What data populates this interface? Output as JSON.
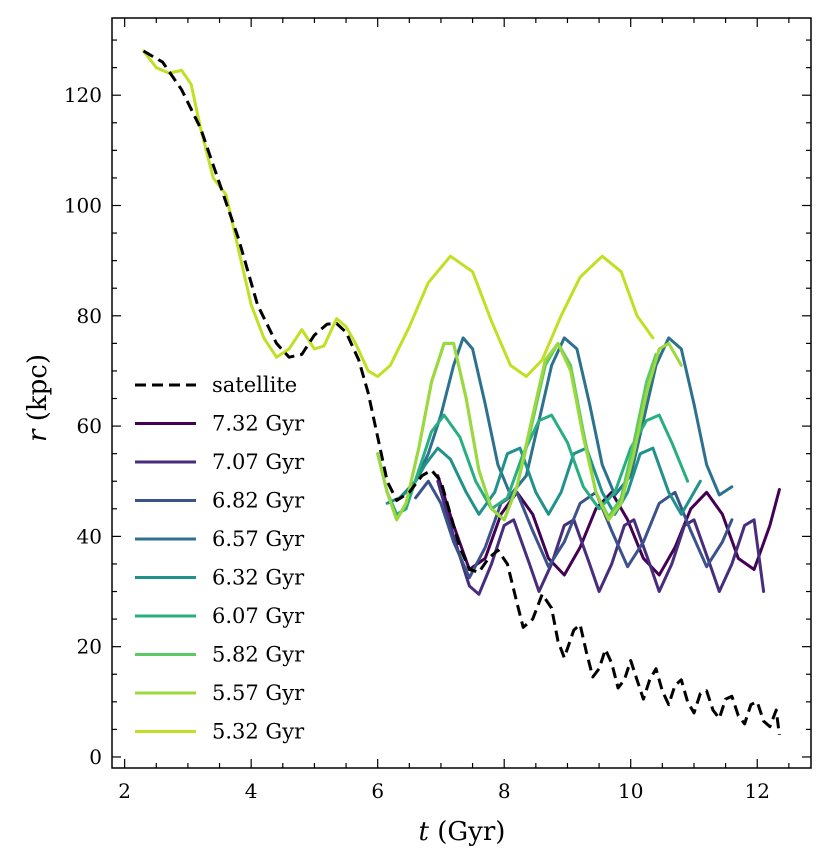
{
  "chart_data": {
    "type": "line",
    "title": "",
    "xlabel_var": "t",
    "xlabel_unit": "(Gyr)",
    "ylabel_var": "r",
    "ylabel_unit": "(kpc)",
    "xlim": [
      1.8,
      12.85
    ],
    "ylim": [
      -2,
      134
    ],
    "xticks": [
      2,
      4,
      6,
      8,
      10,
      12
    ],
    "yticks": [
      0,
      20,
      40,
      60,
      80,
      100,
      120
    ],
    "legend_position": "lower-left",
    "satellite": {
      "name": "satellite",
      "color": "#000000",
      "style": "dashed",
      "points": [
        [
          2.3,
          128
        ],
        [
          2.6,
          126
        ],
        [
          2.9,
          121
        ],
        [
          3.2,
          114
        ],
        [
          3.5,
          104
        ],
        [
          3.8,
          94
        ],
        [
          4.1,
          82
        ],
        [
          4.4,
          75
        ],
        [
          4.6,
          72.5
        ],
        [
          4.8,
          73
        ],
        [
          5.0,
          76.5
        ],
        [
          5.2,
          78.5
        ],
        [
          5.35,
          78.6
        ],
        [
          5.5,
          77
        ],
        [
          5.7,
          72
        ],
        [
          5.85,
          66
        ],
        [
          6.0,
          58
        ],
        [
          6.15,
          50
        ],
        [
          6.3,
          46.5
        ],
        [
          6.5,
          48
        ],
        [
          6.7,
          51
        ],
        [
          6.85,
          52
        ],
        [
          7.0,
          50
        ],
        [
          7.15,
          44
        ],
        [
          7.3,
          38
        ],
        [
          7.45,
          34
        ],
        [
          7.6,
          33.5
        ],
        [
          7.75,
          36
        ],
        [
          7.9,
          37.5
        ],
        [
          8.05,
          35
        ],
        [
          8.2,
          28
        ],
        [
          8.3,
          23.5
        ],
        [
          8.45,
          25
        ],
        [
          8.6,
          29.5
        ],
        [
          8.75,
          27
        ],
        [
          8.85,
          21
        ],
        [
          8.95,
          18
        ],
        [
          9.1,
          23
        ],
        [
          9.2,
          24
        ],
        [
          9.3,
          19
        ],
        [
          9.4,
          14.5
        ],
        [
          9.5,
          16
        ],
        [
          9.6,
          19.5
        ],
        [
          9.7,
          17
        ],
        [
          9.8,
          12.5
        ],
        [
          9.9,
          14
        ],
        [
          10.0,
          17.5
        ],
        [
          10.1,
          14
        ],
        [
          10.2,
          10.5
        ],
        [
          10.3,
          14
        ],
        [
          10.4,
          16
        ],
        [
          10.5,
          12
        ],
        [
          10.6,
          9.5
        ],
        [
          10.7,
          13
        ],
        [
          10.8,
          14
        ],
        [
          10.9,
          10
        ],
        [
          11.0,
          8
        ],
        [
          11.1,
          11.5
        ],
        [
          11.2,
          12
        ],
        [
          11.3,
          8.5
        ],
        [
          11.4,
          7
        ],
        [
          11.5,
          10.5
        ],
        [
          11.6,
          11
        ],
        [
          11.7,
          7.5
        ],
        [
          11.8,
          6
        ],
        [
          11.9,
          9.5
        ],
        [
          12.0,
          10
        ],
        [
          12.1,
          6.5
        ],
        [
          12.2,
          5.5
        ],
        [
          12.3,
          8.5
        ],
        [
          12.35,
          4
        ]
      ]
    },
    "series": [
      {
        "name": "7.32 Gyr",
        "color": "#440154",
        "points": [
          [
            6.95,
            51
          ],
          [
            7.2,
            42
          ],
          [
            7.45,
            34
          ],
          [
            7.7,
            36
          ],
          [
            7.95,
            44
          ],
          [
            8.2,
            48
          ],
          [
            8.45,
            44
          ],
          [
            8.7,
            36
          ],
          [
            8.95,
            33
          ],
          [
            9.2,
            38
          ],
          [
            9.45,
            45
          ],
          [
            9.7,
            48
          ],
          [
            9.95,
            43
          ],
          [
            10.2,
            36
          ],
          [
            10.45,
            33
          ],
          [
            10.7,
            38
          ],
          [
            10.95,
            45
          ],
          [
            11.2,
            48
          ],
          [
            11.45,
            44
          ],
          [
            11.7,
            36
          ],
          [
            11.95,
            34
          ],
          [
            12.2,
            42
          ],
          [
            12.35,
            48.5
          ]
        ]
      },
      {
        "name": "7.07 Gyr",
        "color": "#472d7b",
        "points": [
          [
            6.95,
            50
          ],
          [
            7.2,
            40
          ],
          [
            7.45,
            31
          ],
          [
            7.6,
            29.5
          ],
          [
            7.8,
            35
          ],
          [
            8.0,
            42
          ],
          [
            8.15,
            43
          ],
          [
            8.4,
            35
          ],
          [
            8.55,
            30
          ],
          [
            8.75,
            35
          ],
          [
            8.95,
            42
          ],
          [
            9.1,
            43
          ],
          [
            9.35,
            35
          ],
          [
            9.5,
            30
          ],
          [
            9.7,
            35
          ],
          [
            9.9,
            42
          ],
          [
            10.05,
            43
          ],
          [
            10.3,
            35
          ],
          [
            10.45,
            30
          ],
          [
            10.65,
            35
          ],
          [
            10.85,
            42
          ],
          [
            11.0,
            43
          ],
          [
            11.25,
            35
          ],
          [
            11.4,
            30
          ],
          [
            11.6,
            35
          ],
          [
            11.8,
            42
          ],
          [
            11.95,
            43
          ],
          [
            12.1,
            30
          ]
        ]
      },
      {
        "name": "6.82 Gyr",
        "color": "#3b528b",
        "points": [
          [
            6.6,
            47
          ],
          [
            6.8,
            50
          ],
          [
            7.0,
            46
          ],
          [
            7.2,
            39
          ],
          [
            7.45,
            32.5
          ],
          [
            7.7,
            38
          ],
          [
            7.95,
            46
          ],
          [
            8.2,
            48
          ],
          [
            8.45,
            41
          ],
          [
            8.7,
            34.5
          ],
          [
            8.95,
            39
          ],
          [
            9.2,
            46
          ],
          [
            9.45,
            48
          ],
          [
            9.7,
            41
          ],
          [
            9.95,
            34.5
          ],
          [
            10.2,
            39
          ],
          [
            10.45,
            46
          ],
          [
            10.7,
            48
          ],
          [
            10.95,
            41
          ],
          [
            11.2,
            34.5
          ],
          [
            11.45,
            39
          ],
          [
            11.6,
            43
          ]
        ]
      },
      {
        "name": "6.57 Gyr",
        "color": "#2c728e",
        "points": [
          [
            6.35,
            47
          ],
          [
            6.6,
            50
          ],
          [
            6.8,
            55
          ],
          [
            7.0,
            62
          ],
          [
            7.2,
            71
          ],
          [
            7.35,
            76
          ],
          [
            7.5,
            74
          ],
          [
            7.7,
            64
          ],
          [
            7.9,
            53
          ],
          [
            8.1,
            47.5
          ],
          [
            8.35,
            51
          ],
          [
            8.55,
            61
          ],
          [
            8.75,
            71
          ],
          [
            8.95,
            76
          ],
          [
            9.15,
            74
          ],
          [
            9.35,
            64
          ],
          [
            9.55,
            53
          ],
          [
            9.75,
            47.5
          ],
          [
            10.0,
            51
          ],
          [
            10.2,
            61
          ],
          [
            10.4,
            71
          ],
          [
            10.6,
            76
          ],
          [
            10.8,
            74
          ],
          [
            11.0,
            64
          ],
          [
            11.2,
            53
          ],
          [
            11.4,
            47.5
          ],
          [
            11.6,
            49
          ]
        ]
      },
      {
        "name": "6.32 Gyr",
        "color": "#21918c",
        "points": [
          [
            6.15,
            46
          ],
          [
            6.35,
            47
          ],
          [
            6.55,
            49
          ],
          [
            6.75,
            53
          ],
          [
            6.95,
            56
          ],
          [
            7.15,
            54
          ],
          [
            7.4,
            48
          ],
          [
            7.6,
            44
          ],
          [
            7.85,
            48
          ],
          [
            8.05,
            55
          ],
          [
            8.25,
            56
          ],
          [
            8.5,
            48
          ],
          [
            8.7,
            44
          ],
          [
            8.9,
            48
          ],
          [
            9.1,
            55
          ],
          [
            9.3,
            56
          ],
          [
            9.55,
            48
          ],
          [
            9.75,
            44
          ],
          [
            9.95,
            48
          ],
          [
            10.15,
            55
          ],
          [
            10.35,
            56
          ],
          [
            10.6,
            48
          ],
          [
            10.8,
            44
          ],
          [
            11.0,
            48
          ],
          [
            11.1,
            50
          ]
        ]
      },
      {
        "name": "6.07 Gyr",
        "color": "#28ae80",
        "points": [
          [
            6.0,
            55
          ],
          [
            6.15,
            48
          ],
          [
            6.3,
            44
          ],
          [
            6.45,
            45
          ],
          [
            6.65,
            52
          ],
          [
            6.85,
            59
          ],
          [
            7.05,
            62
          ],
          [
            7.3,
            58
          ],
          [
            7.55,
            50
          ],
          [
            7.8,
            45
          ],
          [
            8.05,
            47
          ],
          [
            8.3,
            55
          ],
          [
            8.55,
            61
          ],
          [
            8.75,
            62
          ],
          [
            9.0,
            57
          ],
          [
            9.25,
            49
          ],
          [
            9.5,
            45
          ],
          [
            9.75,
            48
          ],
          [
            10.0,
            56
          ],
          [
            10.25,
            61
          ],
          [
            10.45,
            62
          ],
          [
            10.65,
            57
          ],
          [
            10.9,
            50
          ]
        ]
      },
      {
        "name": "5.82 Gyr",
        "color": "#5ec962",
        "points": [
          [
            6.0,
            55
          ],
          [
            6.15,
            48
          ],
          [
            6.3,
            43
          ],
          [
            6.45,
            46
          ],
          [
            6.65,
            56
          ],
          [
            6.85,
            68
          ],
          [
            7.05,
            75
          ],
          [
            7.2,
            75
          ],
          [
            7.4,
            65
          ],
          [
            7.6,
            52
          ],
          [
            7.8,
            45
          ],
          [
            8.0,
            43
          ],
          [
            8.2,
            49
          ],
          [
            8.45,
            61
          ],
          [
            8.65,
            71
          ],
          [
            8.85,
            75
          ],
          [
            9.05,
            71
          ],
          [
            9.25,
            59
          ],
          [
            9.45,
            48
          ],
          [
            9.65,
            43.5
          ],
          [
            9.85,
            47
          ],
          [
            10.05,
            57
          ],
          [
            10.25,
            68
          ],
          [
            10.4,
            73
          ]
        ]
      },
      {
        "name": "5.57 Gyr",
        "color": "#9bd93c",
        "points": [
          [
            6.0,
            55
          ],
          [
            6.15,
            48
          ],
          [
            6.3,
            43
          ],
          [
            6.45,
            46
          ],
          [
            6.65,
            56
          ],
          [
            6.85,
            68
          ],
          [
            7.05,
            75
          ],
          [
            7.2,
            75
          ],
          [
            7.4,
            65
          ],
          [
            7.6,
            52
          ],
          [
            7.8,
            45
          ],
          [
            8.0,
            43
          ],
          [
            8.2,
            49
          ],
          [
            8.45,
            62
          ],
          [
            8.65,
            72
          ],
          [
            8.85,
            75
          ],
          [
            9.05,
            70
          ],
          [
            9.25,
            58
          ],
          [
            9.45,
            48
          ],
          [
            9.65,
            43
          ],
          [
            9.85,
            46
          ],
          [
            10.05,
            55
          ],
          [
            10.25,
            66
          ],
          [
            10.45,
            74
          ],
          [
            10.6,
            75
          ],
          [
            10.8,
            71
          ]
        ]
      },
      {
        "name": "5.32 Gyr",
        "color": "#c2df23",
        "points": [
          [
            2.3,
            128
          ],
          [
            2.5,
            125
          ],
          [
            2.7,
            124
          ],
          [
            2.9,
            124.5
          ],
          [
            3.05,
            122
          ],
          [
            3.2,
            114
          ],
          [
            3.4,
            105
          ],
          [
            3.6,
            102
          ],
          [
            3.8,
            92
          ],
          [
            4.0,
            82
          ],
          [
            4.2,
            76
          ],
          [
            4.4,
            72.5
          ],
          [
            4.6,
            74
          ],
          [
            4.8,
            77.5
          ],
          [
            5.0,
            74
          ],
          [
            5.15,
            74.5
          ],
          [
            5.35,
            79.5
          ],
          [
            5.5,
            78
          ],
          [
            5.65,
            75
          ],
          [
            5.85,
            70
          ],
          [
            6.0,
            69
          ],
          [
            6.2,
            71
          ],
          [
            6.5,
            78
          ],
          [
            6.8,
            86
          ],
          [
            7.15,
            90.8
          ],
          [
            7.5,
            88
          ],
          [
            7.8,
            79
          ],
          [
            8.1,
            71
          ],
          [
            8.35,
            69
          ],
          [
            8.6,
            72
          ],
          [
            8.9,
            80
          ],
          [
            9.2,
            87
          ],
          [
            9.55,
            90.8
          ],
          [
            9.85,
            88
          ],
          [
            10.1,
            80
          ],
          [
            10.35,
            76
          ]
        ]
      }
    ]
  }
}
